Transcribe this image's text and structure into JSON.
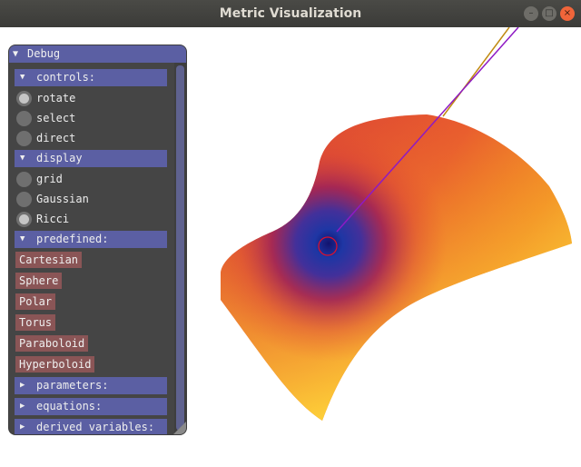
{
  "window": {
    "title": "Metric Visualization",
    "buttons": {
      "minimize": "–",
      "maximize": "□",
      "close": "×"
    }
  },
  "debug_panel": {
    "title": "Debug",
    "sections": {
      "controls": {
        "label": "controls:",
        "expanded": true,
        "items": [
          "rotate",
          "select",
          "direct"
        ],
        "selected": "rotate"
      },
      "display": {
        "label": "display",
        "expanded": true,
        "items": [
          "grid",
          "Gaussian",
          "Ricci"
        ],
        "selected": "Ricci"
      },
      "predefined": {
        "label": "predefined:",
        "expanded": true,
        "buttons": [
          "Cartesian",
          "Sphere",
          "Polar",
          "Torus",
          "Paraboloid",
          "Hyperboloid"
        ]
      },
      "parameters": {
        "label": "parameters:",
        "expanded": false
      },
      "equations": {
        "label": "equations:",
        "expanded": false
      },
      "derived": {
        "label": "derived variables:",
        "expanded": false
      }
    }
  },
  "viewport": {
    "colormap": [
      "#1a2fa0",
      "#a01c55",
      "#e8502e",
      "#fff23a"
    ],
    "selection_marker_color": "#e0102a",
    "line_colors": [
      "#c08a10",
      "#8e1ac4"
    ]
  }
}
